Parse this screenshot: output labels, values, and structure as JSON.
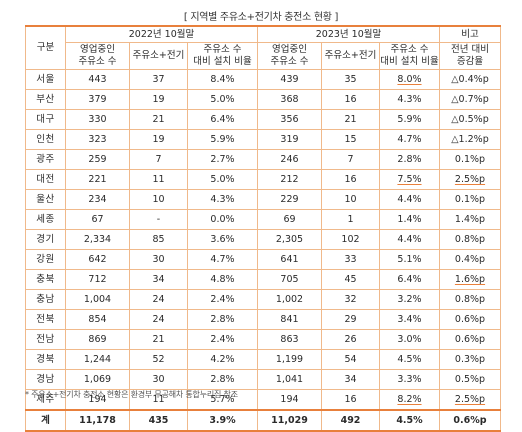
{
  "title": "[ 지역별 주유소+전기차 충전소 현황 ]",
  "header": {
    "region": "구분",
    "period_2022": "2022년 10월말",
    "period_2023": "2023년 10월말",
    "note": "비고",
    "col_stations": "영업중인\n주유소 수",
    "col_ev": "주유소+전기",
    "col_ratio": "주유소 수\n대비 설치 비율",
    "col_change": "전년 대비\n증감율"
  },
  "rows": [
    {
      "region": "서울",
      "s22": "443",
      "e22": "37",
      "r22": "8.4%",
      "s23": "439",
      "e23": "35",
      "r23": "8.0%",
      "chg": "△0.4%p",
      "r23_bold": true,
      "chg_bold": false
    },
    {
      "region": "부산",
      "s22": "379",
      "e22": "19",
      "r22": "5.0%",
      "s23": "368",
      "e23": "16",
      "r23": "4.3%",
      "chg": "△0.7%p",
      "r23_bold": false,
      "chg_bold": false
    },
    {
      "region": "대구",
      "s22": "330",
      "e22": "21",
      "r22": "6.4%",
      "s23": "356",
      "e23": "21",
      "r23": "5.9%",
      "chg": "△0.5%p",
      "r23_bold": false,
      "chg_bold": false
    },
    {
      "region": "인천",
      "s22": "323",
      "e22": "19",
      "r22": "5.9%",
      "s23": "319",
      "e23": "15",
      "r23": "4.7%",
      "chg": "△1.2%p",
      "r23_bold": false,
      "chg_bold": false
    },
    {
      "region": "광주",
      "s22": "259",
      "e22": "7",
      "r22": "2.7%",
      "s23": "246",
      "e23": "7",
      "r23": "2.8%",
      "chg": "0.1%p",
      "r23_bold": false,
      "chg_bold": false
    },
    {
      "region": "대전",
      "s22": "221",
      "e22": "11",
      "r22": "5.0%",
      "s23": "212",
      "e23": "16",
      "r23": "7.5%",
      "chg": "2.5%p",
      "r23_bold": true,
      "chg_bold": true
    },
    {
      "region": "울산",
      "s22": "234",
      "e22": "10",
      "r22": "4.3%",
      "s23": "229",
      "e23": "10",
      "r23": "4.4%",
      "chg": "0.1%p",
      "r23_bold": false,
      "chg_bold": false
    },
    {
      "region": "세종",
      "s22": "67",
      "e22": "-",
      "r22": "0.0%",
      "s23": "69",
      "e23": "1",
      "r23": "1.4%",
      "chg": "1.4%p",
      "r23_bold": false,
      "chg_bold": false
    },
    {
      "region": "경기",
      "s22": "2,334",
      "e22": "85",
      "r22": "3.6%",
      "s23": "2,305",
      "e23": "102",
      "r23": "4.4%",
      "chg": "0.8%p",
      "r23_bold": false,
      "chg_bold": false
    },
    {
      "region": "강원",
      "s22": "642",
      "e22": "30",
      "r22": "4.7%",
      "s23": "641",
      "e23": "33",
      "r23": "5.1%",
      "chg": "0.4%p",
      "r23_bold": false,
      "chg_bold": false
    },
    {
      "region": "충북",
      "s22": "712",
      "e22": "34",
      "r22": "4.8%",
      "s23": "705",
      "e23": "45",
      "r23": "6.4%",
      "chg": "1.6%p",
      "r23_bold": false,
      "chg_bold": true
    },
    {
      "region": "충남",
      "s22": "1,004",
      "e22": "24",
      "r22": "2.4%",
      "s23": "1,002",
      "e23": "32",
      "r23": "3.2%",
      "chg": "0.8%p",
      "r23_bold": false,
      "chg_bold": false
    },
    {
      "region": "전북",
      "s22": "854",
      "e22": "24",
      "r22": "2.8%",
      "s23": "841",
      "e23": "29",
      "r23": "3.4%",
      "chg": "0.6%p",
      "r23_bold": false,
      "chg_bold": false
    },
    {
      "region": "전남",
      "s22": "869",
      "e22": "21",
      "r22": "2.4%",
      "s23": "863",
      "e23": "26",
      "r23": "3.0%",
      "chg": "0.6%p",
      "r23_bold": false,
      "chg_bold": false
    },
    {
      "region": "경북",
      "s22": "1,244",
      "e22": "52",
      "r22": "4.2%",
      "s23": "1,199",
      "e23": "54",
      "r23": "4.5%",
      "chg": "0.3%p",
      "r23_bold": false,
      "chg_bold": false
    },
    {
      "region": "경남",
      "s22": "1,069",
      "e22": "30",
      "r22": "2.8%",
      "s23": "1,041",
      "e23": "34",
      "r23": "3.3%",
      "chg": "0.5%p",
      "r23_bold": false,
      "chg_bold": false
    },
    {
      "region": "제주",
      "s22": "194",
      "e22": "11",
      "r22": "5.7%",
      "s23": "194",
      "e23": "16",
      "r23": "8.2%",
      "chg": "2.5%p",
      "r23_bold": true,
      "chg_bold": true
    }
  ],
  "total": {
    "region": "계",
    "s22": "11,178",
    "e22": "435",
    "r22": "3.9%",
    "s23": "11,029",
    "e23": "492",
    "r23": "4.5%",
    "chg": "0.6%p"
  },
  "footnote": "* 주유소+전기차 충전소 현황은 환경부 무공해차 통합누리집 참조"
}
